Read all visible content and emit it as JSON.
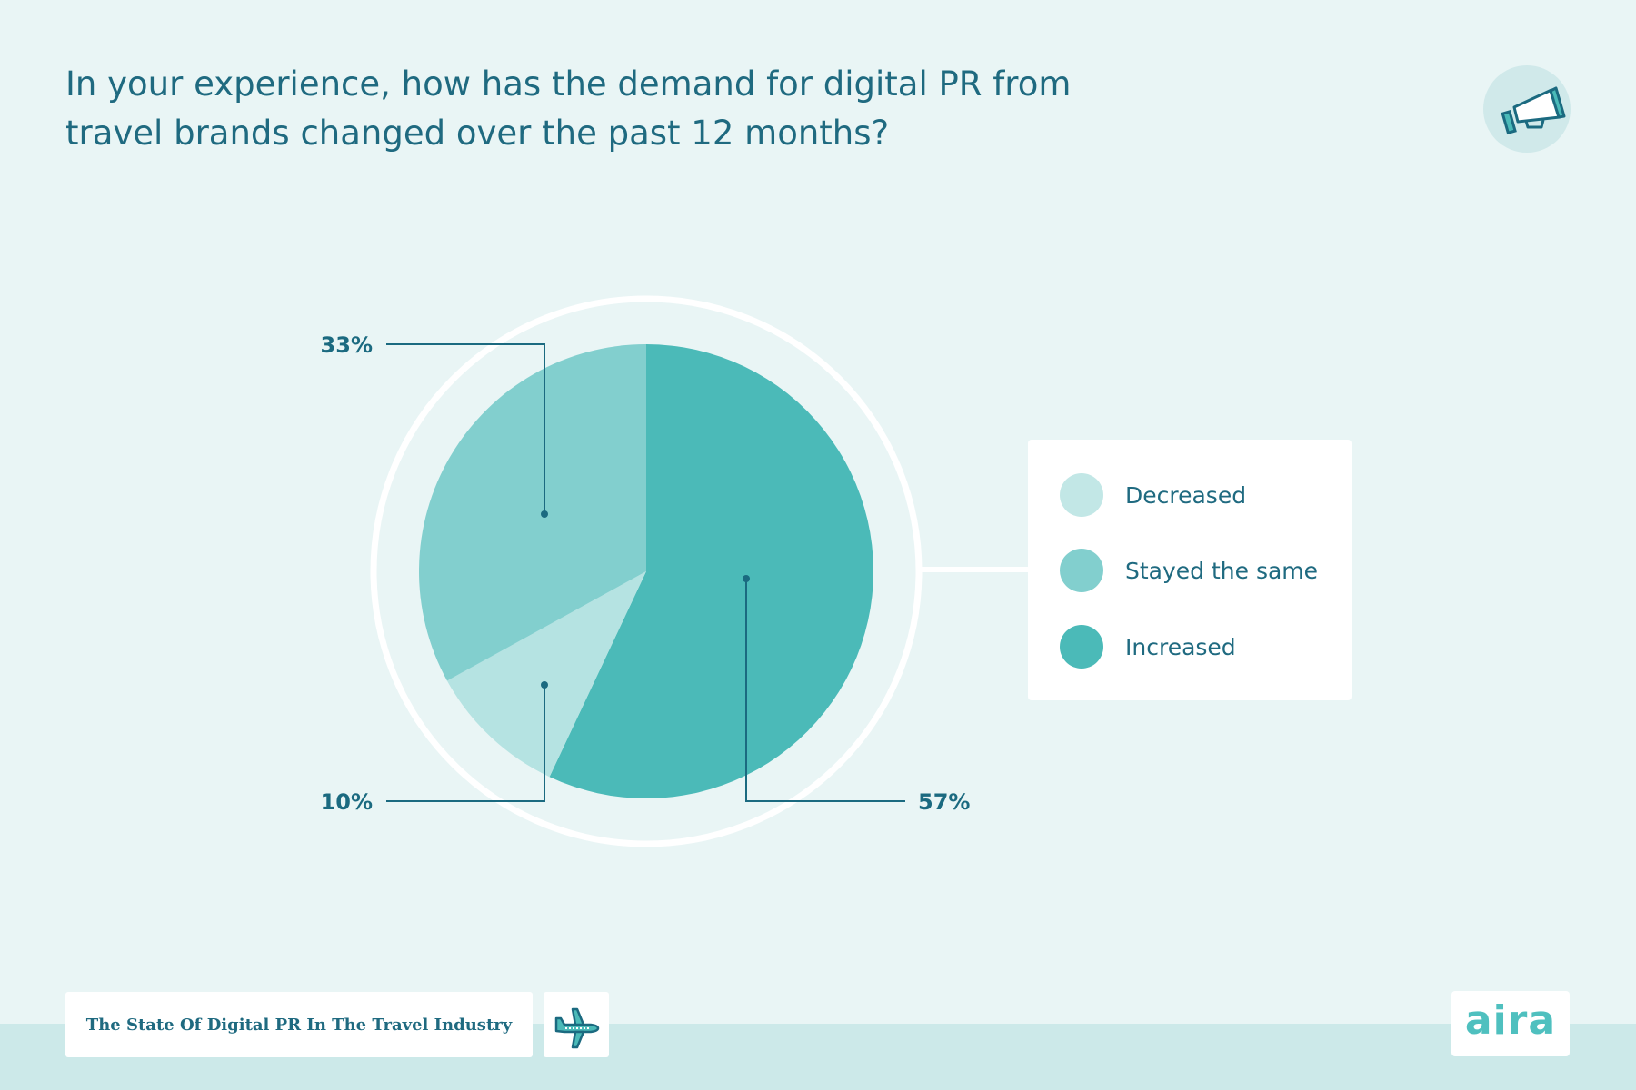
{
  "title": "In your experience, how has the demand for digital PR from travel brands changed over the past 12 months?",
  "chart_data": {
    "type": "pie",
    "start": "top",
    "direction": "clockwise",
    "slices": [
      {
        "label": "Increased",
        "value": 57,
        "display": "57%",
        "color": "#4bbab8"
      },
      {
        "label": "Decreased",
        "value": 10,
        "display": "10%",
        "color": "#b5e3e2"
      },
      {
        "label": "Stayed the same",
        "value": 33,
        "display": "33%",
        "color": "#82cfce"
      }
    ],
    "legend": [
      "Decreased",
      "Stayed the same",
      "Increased"
    ],
    "legend_placement": "right"
  },
  "colors": {
    "background": "#e9f5f5",
    "band": "#cce9e9",
    "text": "#1f6a80",
    "leader": "#1b6a80"
  },
  "footer": {
    "report_title": "The State Of Digital PR In The Travel Industry",
    "logo": "aira"
  },
  "icons": {
    "top_right": "megaphone-icon",
    "footer": "airplane-icon"
  }
}
